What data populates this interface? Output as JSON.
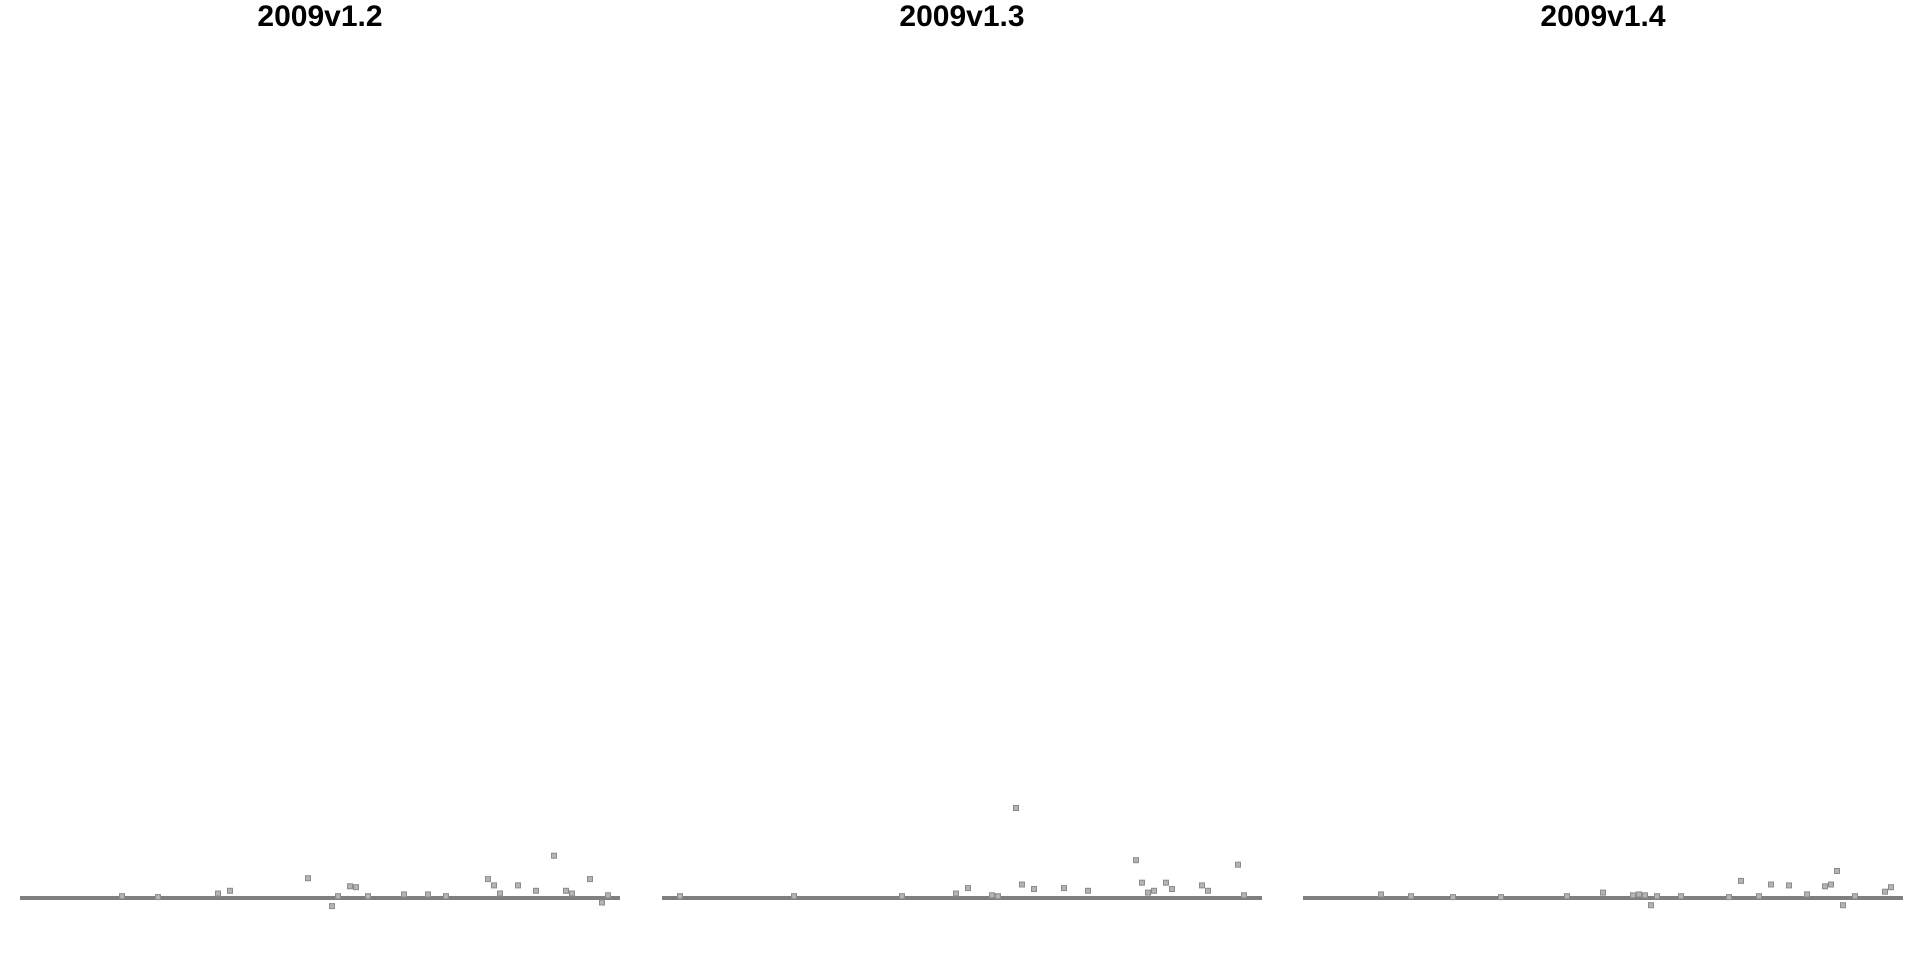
{
  "chart_data": [
    {
      "type": "scatter",
      "title": "2009v1.2",
      "xlabel": "",
      "ylabel": "",
      "xlim": [
        0,
        100
      ],
      "ylim": [
        -0.2,
        10
      ],
      "grid": false,
      "baseline": 0,
      "colors": {
        "points": "#8c8c8c",
        "baseline": "#7f7f7f"
      },
      "points": [
        [
          17,
          0.02
        ],
        [
          23,
          0.01
        ],
        [
          33,
          0.05
        ],
        [
          35,
          0.08
        ],
        [
          48,
          0.22
        ],
        [
          52,
          -0.09
        ],
        [
          53,
          0.02
        ],
        [
          55,
          0.13
        ],
        [
          56,
          0.12
        ],
        [
          58,
          0.02
        ],
        [
          64,
          0.04
        ],
        [
          68,
          0.04
        ],
        [
          71,
          0.02
        ],
        [
          78,
          0.21
        ],
        [
          79,
          0.14
        ],
        [
          80,
          0.05
        ],
        [
          83,
          0.14
        ],
        [
          86,
          0.08
        ],
        [
          89,
          0.47
        ],
        [
          91,
          0.08
        ],
        [
          92,
          0.05
        ],
        [
          95,
          0.21
        ],
        [
          97,
          -0.05
        ],
        [
          98,
          0.03
        ]
      ]
    },
    {
      "type": "scatter",
      "title": "2009v1.3",
      "xlabel": "",
      "ylabel": "",
      "xlim": [
        0,
        100
      ],
      "ylim": [
        -0.2,
        10
      ],
      "grid": false,
      "baseline": 0,
      "colors": {
        "points": "#8c8c8c",
        "baseline": "#7f7f7f"
      },
      "points": [
        [
          3,
          0.02
        ],
        [
          22,
          0.02
        ],
        [
          40,
          0.02
        ],
        [
          49,
          0.05
        ],
        [
          51,
          0.11
        ],
        [
          55,
          0.03
        ],
        [
          56,
          0.02
        ],
        [
          59,
          1.0
        ],
        [
          60,
          0.15
        ],
        [
          62,
          0.1
        ],
        [
          67,
          0.11
        ],
        [
          71,
          0.08
        ],
        [
          79,
          0.42
        ],
        [
          80,
          0.17
        ],
        [
          81,
          0.06
        ],
        [
          82,
          0.08
        ],
        [
          84,
          0.17
        ],
        [
          85,
          0.1
        ],
        [
          90,
          0.14
        ],
        [
          91,
          0.08
        ],
        [
          96,
          0.37
        ],
        [
          97,
          0.03
        ]
      ]
    },
    {
      "type": "scatter",
      "title": "2009v1.4",
      "xlabel": "",
      "ylabel": "",
      "xlim": [
        0,
        100
      ],
      "ylim": [
        -0.2,
        10
      ],
      "grid": false,
      "baseline": 0,
      "colors": {
        "points": "#8c8c8c",
        "baseline": "#7f7f7f"
      },
      "points": [
        [
          13,
          0.04
        ],
        [
          18,
          0.02
        ],
        [
          25,
          0.01
        ],
        [
          33,
          0.01
        ],
        [
          44,
          0.02
        ],
        [
          50,
          0.06
        ],
        [
          55,
          0.03
        ],
        [
          56,
          0.04
        ],
        [
          57,
          0.03
        ],
        [
          58,
          -0.08
        ],
        [
          59,
          0.02
        ],
        [
          63,
          0.02
        ],
        [
          71,
          0.01
        ],
        [
          73,
          0.19
        ],
        [
          76,
          0.02
        ],
        [
          78,
          0.15
        ],
        [
          81,
          0.14
        ],
        [
          84,
          0.04
        ],
        [
          87,
          0.13
        ],
        [
          88,
          0.15
        ],
        [
          89,
          0.3
        ],
        [
          90,
          -0.08
        ],
        [
          92,
          0.02
        ],
        [
          97,
          0.07
        ],
        [
          98,
          0.12
        ]
      ]
    }
  ]
}
